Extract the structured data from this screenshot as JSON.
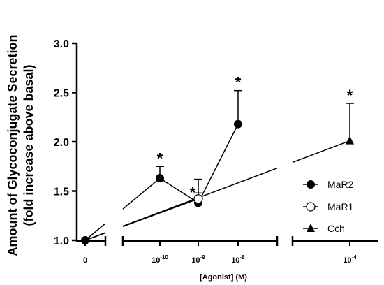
{
  "chart_data": {
    "type": "line",
    "ylabel_line1": "Amount of Glycoconjugate Secretion",
    "ylabel_line2": "(fold increase above basal)",
    "xlabel": "[Agonist] (M)",
    "ylim": [
      1.0,
      3.0
    ],
    "yticks": [
      "1.0",
      "1.5",
      "2.0",
      "2.5",
      "3.0"
    ],
    "xticks": [
      {
        "base": "0",
        "exp": ""
      },
      {
        "base": "10",
        "exp": "-10"
      },
      {
        "base": "10",
        "exp": "-9"
      },
      {
        "base": "10",
        "exp": "-8"
      },
      {
        "base": "10",
        "exp": "-4"
      }
    ],
    "series": [
      {
        "name": "MaR2",
        "marker": "filled-circle",
        "x": [
          "0",
          "10^-10",
          "10^-9",
          "10^-8"
        ],
        "y": [
          1.0,
          1.63,
          1.38,
          2.18
        ],
        "err": [
          0,
          0.12,
          0.1,
          0.34
        ],
        "sig": [
          false,
          true,
          true,
          true
        ]
      },
      {
        "name": "MaR1",
        "marker": "open-circle",
        "x": [
          "0",
          "10^-9"
        ],
        "y": [
          1.0,
          1.42
        ],
        "err": [
          0,
          0.2
        ],
        "sig": [
          false,
          false
        ]
      },
      {
        "name": "Cch",
        "marker": "filled-triangle",
        "x": [
          "0",
          "10^-4"
        ],
        "y": [
          1.0,
          2.01
        ],
        "err": [
          0,
          0.38
        ],
        "sig": [
          false,
          true
        ]
      }
    ],
    "annotation_symbol": "*",
    "legend_position": "right",
    "grid": false
  }
}
